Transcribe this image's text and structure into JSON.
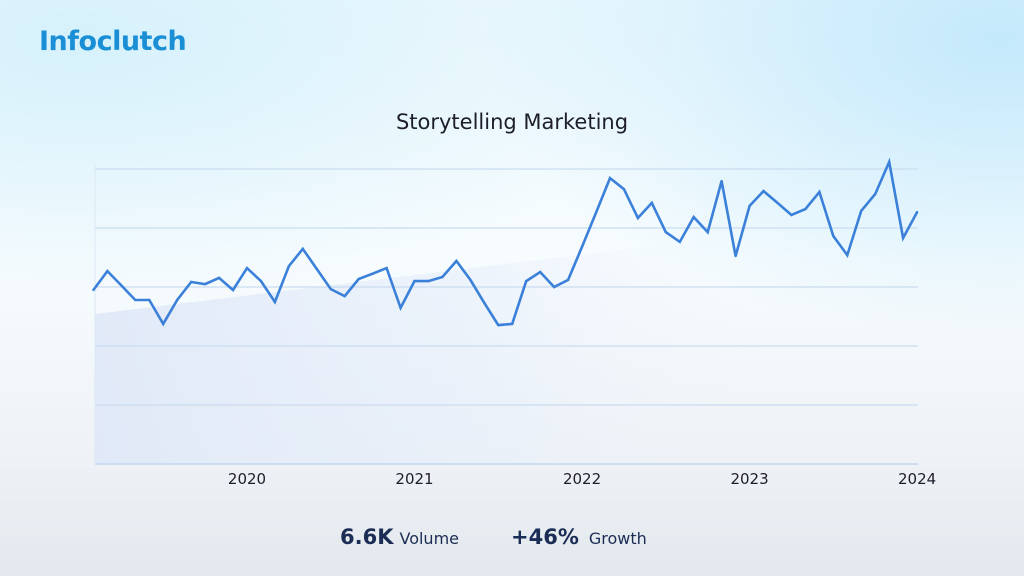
{
  "logo": {
    "text": "Infoclutch"
  },
  "chart_data": {
    "type": "line",
    "title": "Storytelling Marketing",
    "xlabel": "",
    "ylabel": "",
    "x_ticks": [
      "2020",
      "2021",
      "2022",
      "2023",
      "2024"
    ],
    "ylim": [
      0,
      100
    ],
    "grid": true,
    "line_color": "#3b80d9",
    "x": [
      "2019-02",
      "2019-03",
      "2019-04",
      "2019-05",
      "2019-06",
      "2019-07",
      "2019-08",
      "2019-09",
      "2019-10",
      "2019-11",
      "2019-12",
      "2020-01",
      "2020-02",
      "2020-03",
      "2020-04",
      "2020-05",
      "2020-06",
      "2020-07",
      "2020-08",
      "2020-09",
      "2020-10",
      "2020-11",
      "2020-12",
      "2021-01",
      "2021-02",
      "2021-03",
      "2021-04",
      "2021-05",
      "2021-06",
      "2021-07",
      "2021-08",
      "2021-09",
      "2021-10",
      "2021-11",
      "2021-12",
      "2022-01",
      "2022-02",
      "2022-03",
      "2022-04",
      "2022-05",
      "2022-06",
      "2022-07",
      "2022-08",
      "2022-09",
      "2022-10",
      "2022-11",
      "2022-12",
      "2023-01",
      "2023-02",
      "2023-03",
      "2023-04",
      "2023-05",
      "2023-06",
      "2023-07",
      "2023-08",
      "2023-09",
      "2023-10",
      "2023-11",
      "2023-12",
      "2024-01"
    ],
    "values": [
      59.0,
      65.4,
      60.5,
      55.6,
      55.6,
      47.5,
      55.6,
      61.7,
      61.0,
      63.1,
      59.0,
      66.4,
      62.0,
      54.9,
      67.1,
      72.9,
      66.1,
      59.3,
      56.9,
      62.7,
      64.5,
      66.4,
      52.9,
      62.0,
      62.0,
      63.4,
      68.8,
      62.4,
      54.6,
      47.1,
      47.5,
      62.0,
      65.1,
      60.0,
      62.4,
      73.6,
      85.2,
      96.9,
      93.2,
      83.4,
      88.5,
      78.6,
      75.3,
      83.7,
      78.6,
      95.9,
      70.5,
      87.5,
      92.5,
      88.5,
      84.4,
      86.4,
      92.2,
      77.3,
      70.8,
      85.8,
      91.5,
      102.4,
      76.6,
      85.4
    ]
  },
  "stats": {
    "volume_value": "6.6K",
    "volume_label": "Volume",
    "growth_value": "+46%",
    "growth_label": "Growth"
  }
}
